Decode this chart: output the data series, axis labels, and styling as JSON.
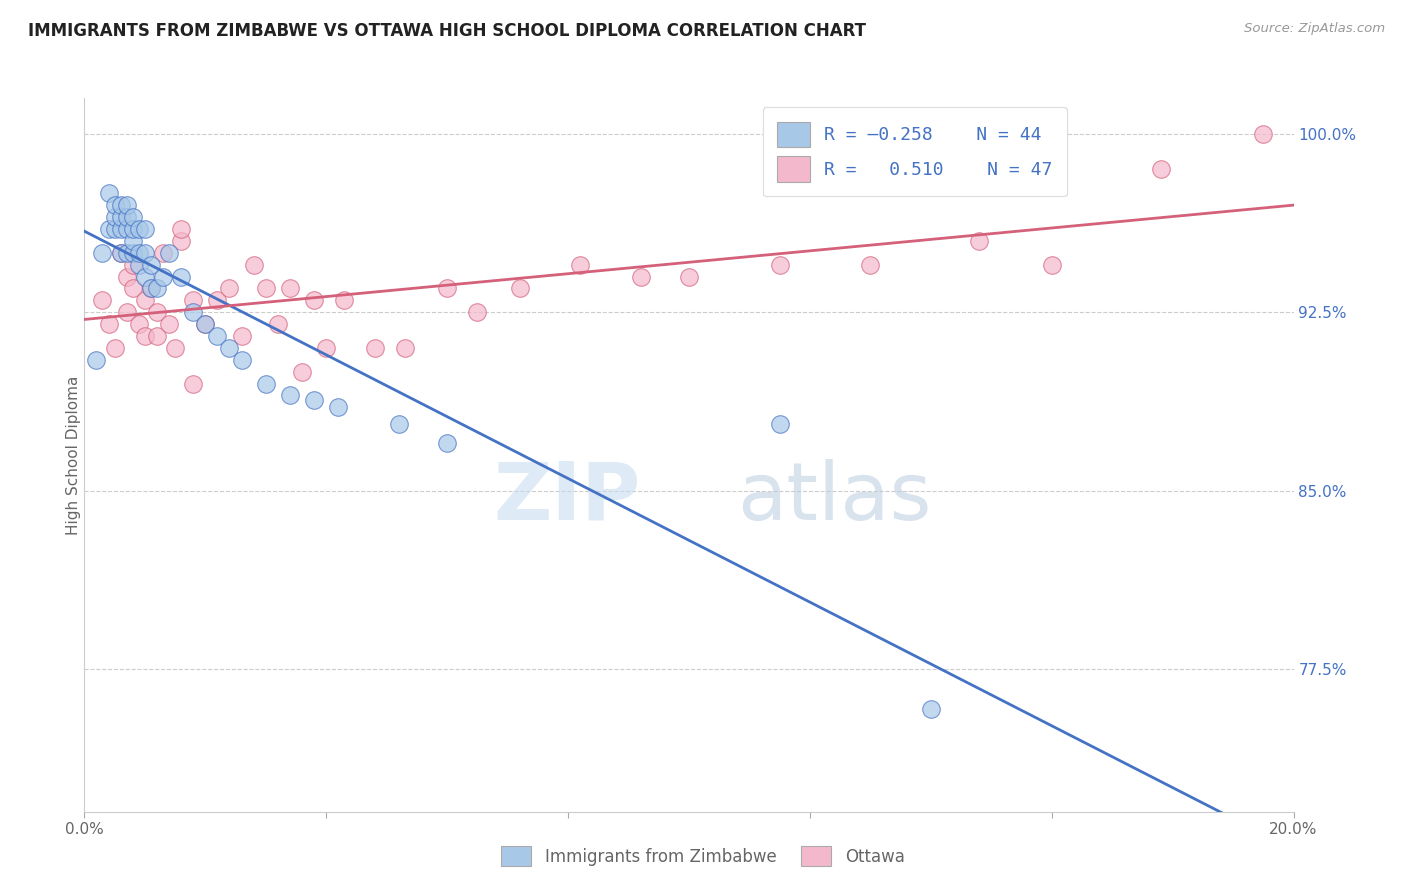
{
  "title": "IMMIGRANTS FROM ZIMBABWE VS OTTAWA HIGH SCHOOL DIPLOMA CORRELATION CHART",
  "source": "Source: ZipAtlas.com",
  "ylabel": "High School Diploma",
  "xmin": 0.0,
  "xmax": 0.2,
  "ymin": 0.715,
  "ymax": 1.015,
  "right_ytick_labels": [
    "100.0%",
    "92.5%",
    "85.0%",
    "77.5%"
  ],
  "right_ytick_values": [
    1.0,
    0.925,
    0.85,
    0.775
  ],
  "xtick_positions": [
    0.0,
    0.04,
    0.08,
    0.12,
    0.16,
    0.2
  ],
  "xtick_labels": [
    "0.0%",
    "",
    "",
    "",
    "",
    "20.0%"
  ],
  "color_blue": "#a8c8e8",
  "color_pink": "#f4b8cc",
  "line_blue": "#4472c4",
  "line_pink": "#d4607a",
  "watermark_zip": "ZIP",
  "watermark_atlas": "atlas",
  "blue_x": [
    0.002,
    0.003,
    0.004,
    0.004,
    0.005,
    0.005,
    0.005,
    0.006,
    0.006,
    0.006,
    0.006,
    0.007,
    0.007,
    0.007,
    0.007,
    0.008,
    0.008,
    0.008,
    0.008,
    0.009,
    0.009,
    0.009,
    0.01,
    0.01,
    0.01,
    0.011,
    0.011,
    0.012,
    0.013,
    0.014,
    0.016,
    0.018,
    0.02,
    0.022,
    0.024,
    0.026,
    0.03,
    0.034,
    0.038,
    0.042,
    0.052,
    0.06,
    0.115,
    0.14
  ],
  "blue_y": [
    0.905,
    0.95,
    0.96,
    0.975,
    0.96,
    0.965,
    0.97,
    0.95,
    0.96,
    0.965,
    0.97,
    0.95,
    0.96,
    0.965,
    0.97,
    0.95,
    0.955,
    0.96,
    0.965,
    0.945,
    0.95,
    0.96,
    0.94,
    0.95,
    0.96,
    0.935,
    0.945,
    0.935,
    0.94,
    0.95,
    0.94,
    0.925,
    0.92,
    0.915,
    0.91,
    0.905,
    0.895,
    0.89,
    0.888,
    0.885,
    0.878,
    0.87,
    0.878,
    0.758
  ],
  "pink_x": [
    0.003,
    0.004,
    0.005,
    0.006,
    0.007,
    0.007,
    0.008,
    0.008,
    0.009,
    0.01,
    0.01,
    0.011,
    0.012,
    0.012,
    0.013,
    0.014,
    0.015,
    0.016,
    0.016,
    0.018,
    0.018,
    0.02,
    0.022,
    0.024,
    0.026,
    0.028,
    0.03,
    0.032,
    0.034,
    0.036,
    0.038,
    0.04,
    0.043,
    0.048,
    0.053,
    0.06,
    0.065,
    0.072,
    0.082,
    0.092,
    0.1,
    0.115,
    0.13,
    0.148,
    0.16,
    0.178,
    0.195
  ],
  "pink_y": [
    0.93,
    0.92,
    0.91,
    0.95,
    0.94,
    0.925,
    0.935,
    0.945,
    0.92,
    0.93,
    0.915,
    0.935,
    0.925,
    0.915,
    0.95,
    0.92,
    0.91,
    0.955,
    0.96,
    0.93,
    0.895,
    0.92,
    0.93,
    0.935,
    0.915,
    0.945,
    0.935,
    0.92,
    0.935,
    0.9,
    0.93,
    0.91,
    0.93,
    0.91,
    0.91,
    0.935,
    0.925,
    0.935,
    0.945,
    0.94,
    0.94,
    0.945,
    0.945,
    0.955,
    0.945,
    0.985,
    1.0
  ]
}
